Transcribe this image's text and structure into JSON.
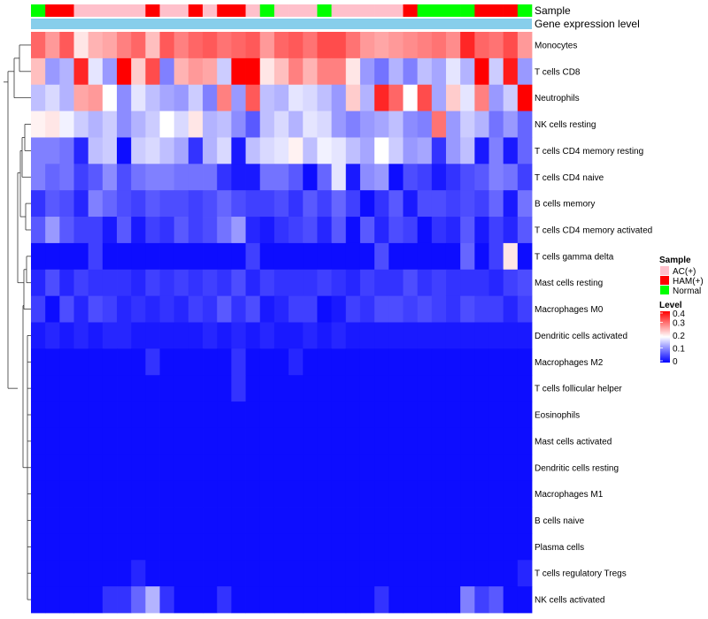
{
  "chart_data": {
    "type": "heatmap",
    "title": "",
    "annotation_titles": [
      "Sample",
      "Gene expression level"
    ],
    "rows": [
      "Monocytes",
      "T cells CD8",
      "Neutrophils",
      "NK cells resting",
      "T cells CD4 memory resting",
      "T cells CD4 naive",
      "B cells memory",
      "T cells CD4 memory activated",
      "T cells gamma delta",
      "Mast cells resting",
      "Macrophages M0",
      "Dendritic cells activated",
      "Macrophages M2",
      "T cells follicular helper",
      "Eosinophils",
      "Mast cells activated",
      "Dendritic cells resting",
      "Macrophages M1",
      "B cells naive",
      "Plasma cells",
      "T cells regulatory  Tregs",
      "NK cells activated"
    ],
    "sample_groups": [
      "Normal",
      "HAM(+)",
      "HAM(+)",
      "AC(+)",
      "AC(+)",
      "AC(+)",
      "AC(+)",
      "AC(+)",
      "HAM(+)",
      "AC(+)",
      "AC(+)",
      "HAM(+)",
      "AC(+)",
      "HAM(+)",
      "HAM(+)",
      "AC(+)",
      "Normal",
      "AC(+)",
      "AC(+)",
      "AC(+)",
      "Normal",
      "AC(+)",
      "AC(+)",
      "AC(+)",
      "AC(+)",
      "AC(+)",
      "HAM(+)",
      "Normal",
      "Normal",
      "Normal",
      "Normal",
      "HAM(+)",
      "HAM(+)",
      "HAM(+)",
      "Normal"
    ],
    "gene_expression_level_band": "light-blue",
    "values": [
      [
        0.32,
        0.28,
        0.33,
        0.22,
        0.26,
        0.27,
        0.3,
        0.32,
        0.25,
        0.33,
        0.3,
        0.32,
        0.33,
        0.31,
        0.32,
        0.33,
        0.28,
        0.32,
        0.33,
        0.31,
        0.34,
        0.34,
        0.31,
        0.28,
        0.27,
        0.28,
        0.29,
        0.3,
        0.31,
        0.29,
        0.37,
        0.32,
        0.31,
        0.34,
        0.28
      ],
      [
        0.25,
        0.12,
        0.14,
        0.37,
        0.18,
        0.12,
        0.4,
        0.24,
        0.34,
        0.1,
        0.26,
        0.28,
        0.27,
        0.16,
        0.4,
        0.4,
        0.22,
        0.25,
        0.3,
        0.26,
        0.3,
        0.3,
        0.22,
        0.12,
        0.09,
        0.14,
        0.1,
        0.15,
        0.13,
        0.18,
        0.14,
        0.4,
        0.16,
        0.38,
        0.12
      ],
      [
        0.15,
        0.17,
        0.14,
        0.27,
        0.28,
        0.2,
        0.11,
        0.18,
        0.15,
        0.13,
        0.12,
        0.16,
        0.1,
        0.3,
        0.12,
        0.33,
        0.15,
        0.14,
        0.18,
        0.17,
        0.15,
        0.12,
        0.24,
        0.14,
        0.37,
        0.32,
        0.2,
        0.34,
        0.13,
        0.24,
        0.18,
        0.3,
        0.12,
        0.16,
        0.4
      ],
      [
        0.21,
        0.22,
        0.19,
        0.16,
        0.14,
        0.16,
        0.11,
        0.14,
        0.16,
        0.2,
        0.17,
        0.22,
        0.14,
        0.15,
        0.11,
        0.07,
        0.15,
        0.17,
        0.14,
        0.18,
        0.17,
        0.12,
        0.1,
        0.12,
        0.13,
        0.15,
        0.11,
        0.1,
        0.31,
        0.12,
        0.16,
        0.14,
        0.09,
        0.12,
        0.08
      ],
      [
        0.1,
        0.1,
        0.09,
        0.03,
        0.15,
        0.16,
        0.01,
        0.16,
        0.17,
        0.15,
        0.13,
        0.04,
        0.14,
        0.17,
        0.02,
        0.15,
        0.17,
        0.18,
        0.21,
        0.15,
        0.19,
        0.18,
        0.15,
        0.13,
        0.2,
        0.16,
        0.12,
        0.13,
        0.04,
        0.12,
        0.15,
        0.02,
        0.1,
        0.02,
        0.08
      ],
      [
        0.1,
        0.08,
        0.09,
        0.05,
        0.07,
        0.11,
        0.06,
        0.09,
        0.1,
        0.1,
        0.09,
        0.09,
        0.09,
        0.04,
        0.02,
        0.02,
        0.09,
        0.09,
        0.07,
        0.01,
        0.08,
        0.18,
        0.02,
        0.11,
        0.12,
        0.01,
        0.06,
        0.05,
        0.02,
        0.04,
        0.06,
        0.07,
        0.1,
        0.09,
        0.05
      ],
      [
        0.04,
        0.07,
        0.06,
        0.03,
        0.1,
        0.08,
        0.06,
        0.05,
        0.07,
        0.06,
        0.06,
        0.05,
        0.06,
        0.08,
        0.06,
        0.05,
        0.05,
        0.06,
        0.04,
        0.07,
        0.05,
        0.08,
        0.05,
        0.01,
        0.04,
        0.07,
        0.02,
        0.06,
        0.06,
        0.05,
        0.06,
        0.05,
        0.08,
        0.02,
        0.09
      ],
      [
        0.07,
        0.12,
        0.07,
        0.05,
        0.05,
        0.02,
        0.07,
        0.02,
        0.05,
        0.04,
        0.07,
        0.05,
        0.06,
        0.09,
        0.12,
        0.03,
        0.02,
        0.04,
        0.05,
        0.06,
        0.03,
        0.07,
        0.01,
        0.07,
        0.03,
        0.06,
        0.05,
        0.01,
        0.04,
        0.03,
        0.07,
        0.02,
        0.05,
        0.03,
        0.07
      ],
      [
        0.01,
        0.01,
        0.01,
        0.01,
        0.05,
        0.01,
        0.01,
        0.01,
        0.01,
        0.01,
        0.01,
        0.01,
        0.01,
        0.01,
        0.01,
        0.05,
        0.01,
        0.01,
        0.01,
        0.01,
        0.01,
        0.01,
        0.01,
        0.01,
        0.06,
        0.01,
        0.01,
        0.01,
        0.01,
        0.01,
        0.08,
        0.01,
        0.05,
        0.22,
        0.01
      ],
      [
        0.03,
        0.06,
        0.03,
        0.05,
        0.04,
        0.04,
        0.04,
        0.03,
        0.05,
        0.04,
        0.05,
        0.04,
        0.05,
        0.04,
        0.06,
        0.03,
        0.05,
        0.04,
        0.04,
        0.04,
        0.05,
        0.04,
        0.03,
        0.05,
        0.04,
        0.04,
        0.06,
        0.04,
        0.05,
        0.04,
        0.04,
        0.04,
        0.03,
        0.05,
        0.06
      ],
      [
        0.05,
        0.01,
        0.06,
        0.03,
        0.06,
        0.05,
        0.03,
        0.04,
        0.03,
        0.04,
        0.03,
        0.05,
        0.04,
        0.07,
        0.04,
        0.06,
        0.02,
        0.03,
        0.05,
        0.05,
        0.01,
        0.02,
        0.05,
        0.04,
        0.06,
        0.06,
        0.05,
        0.06,
        0.05,
        0.04,
        0.06,
        0.05,
        0.05,
        0.03,
        0.05
      ],
      [
        0.02,
        0.03,
        0.02,
        0.03,
        0.02,
        0.03,
        0.03,
        0.02,
        0.02,
        0.02,
        0.02,
        0.02,
        0.03,
        0.02,
        0.03,
        0.02,
        0.03,
        0.02,
        0.02,
        0.03,
        0.02,
        0.03,
        0.02,
        0.02,
        0.02,
        0.02,
        0.02,
        0.02,
        0.02,
        0.02,
        0.02,
        0.02,
        0.02,
        0.02,
        0.02
      ],
      [
        0.01,
        0.01,
        0.01,
        0.01,
        0.01,
        0.01,
        0.01,
        0.01,
        0.04,
        0.01,
        0.01,
        0.01,
        0.01,
        0.01,
        0.04,
        0.01,
        0.01,
        0.01,
        0.03,
        0.01,
        0.01,
        0.01,
        0.01,
        0.01,
        0.01,
        0.01,
        0.01,
        0.01,
        0.01,
        0.01,
        0.01,
        0.01,
        0.01,
        0.01,
        0.01
      ],
      [
        0.01,
        0.01,
        0.01,
        0.01,
        0.01,
        0.01,
        0.01,
        0.01,
        0.01,
        0.01,
        0.01,
        0.01,
        0.01,
        0.01,
        0.04,
        0.01,
        0.01,
        0.01,
        0.01,
        0.01,
        0.01,
        0.01,
        0.01,
        0.01,
        0.01,
        0.01,
        0.01,
        0.01,
        0.01,
        0.01,
        0.01,
        0.01,
        0.01,
        0.01,
        0.01
      ],
      [
        0.01,
        0.01,
        0.01,
        0.01,
        0.01,
        0.01,
        0.01,
        0.01,
        0.01,
        0.01,
        0.01,
        0.01,
        0.01,
        0.01,
        0.01,
        0.01,
        0.01,
        0.01,
        0.01,
        0.01,
        0.01,
        0.01,
        0.01,
        0.01,
        0.01,
        0.01,
        0.01,
        0.01,
        0.01,
        0.01,
        0.01,
        0.01,
        0.01,
        0.01,
        0.01
      ],
      [
        0.01,
        0.01,
        0.01,
        0.01,
        0.01,
        0.01,
        0.01,
        0.01,
        0.01,
        0.01,
        0.01,
        0.01,
        0.01,
        0.01,
        0.01,
        0.01,
        0.01,
        0.01,
        0.01,
        0.01,
        0.01,
        0.01,
        0.01,
        0.01,
        0.01,
        0.01,
        0.01,
        0.01,
        0.01,
        0.01,
        0.01,
        0.01,
        0.01,
        0.01,
        0.01
      ],
      [
        0.01,
        0.01,
        0.01,
        0.01,
        0.01,
        0.01,
        0.01,
        0.01,
        0.01,
        0.01,
        0.01,
        0.01,
        0.01,
        0.01,
        0.01,
        0.01,
        0.01,
        0.01,
        0.01,
        0.01,
        0.01,
        0.01,
        0.01,
        0.01,
        0.01,
        0.01,
        0.01,
        0.01,
        0.01,
        0.01,
        0.01,
        0.01,
        0.01,
        0.01,
        0.01
      ],
      [
        0.01,
        0.01,
        0.01,
        0.01,
        0.01,
        0.01,
        0.01,
        0.01,
        0.01,
        0.01,
        0.01,
        0.01,
        0.01,
        0.01,
        0.01,
        0.01,
        0.01,
        0.01,
        0.01,
        0.01,
        0.01,
        0.01,
        0.01,
        0.01,
        0.01,
        0.01,
        0.01,
        0.01,
        0.01,
        0.01,
        0.01,
        0.01,
        0.01,
        0.01,
        0.01
      ],
      [
        0.01,
        0.01,
        0.01,
        0.01,
        0.01,
        0.01,
        0.01,
        0.01,
        0.01,
        0.01,
        0.01,
        0.01,
        0.01,
        0.01,
        0.01,
        0.01,
        0.01,
        0.01,
        0.01,
        0.01,
        0.01,
        0.01,
        0.01,
        0.01,
        0.01,
        0.01,
        0.01,
        0.01,
        0.01,
        0.01,
        0.01,
        0.01,
        0.01,
        0.01,
        0.01
      ],
      [
        0.01,
        0.01,
        0.01,
        0.01,
        0.01,
        0.01,
        0.01,
        0.01,
        0.01,
        0.01,
        0.01,
        0.01,
        0.01,
        0.01,
        0.01,
        0.01,
        0.01,
        0.01,
        0.01,
        0.01,
        0.01,
        0.01,
        0.01,
        0.01,
        0.01,
        0.01,
        0.01,
        0.01,
        0.01,
        0.01,
        0.01,
        0.01,
        0.01,
        0.01,
        0.01
      ],
      [
        0.01,
        0.01,
        0.01,
        0.01,
        0.01,
        0.01,
        0.01,
        0.03,
        0.01,
        0.01,
        0.01,
        0.01,
        0.01,
        0.01,
        0.01,
        0.01,
        0.01,
        0.01,
        0.01,
        0.01,
        0.01,
        0.01,
        0.01,
        0.01,
        0.01,
        0.01,
        0.01,
        0.01,
        0.01,
        0.01,
        0.01,
        0.01,
        0.01,
        0.01,
        0.03
      ],
      [
        0.01,
        0.01,
        0.01,
        0.01,
        0.01,
        0.04,
        0.04,
        0.08,
        0.14,
        0.04,
        0.01,
        0.01,
        0.01,
        0.04,
        0.01,
        0.01,
        0.01,
        0.01,
        0.01,
        0.01,
        0.01,
        0.01,
        0.01,
        0.01,
        0.04,
        0.01,
        0.01,
        0.01,
        0.01,
        0.01,
        0.1,
        0.05,
        0.07,
        0.01,
        0.01
      ]
    ],
    "legend_sample": {
      "title": "Sample",
      "entries": [
        {
          "label": "AC(+)",
          "color": "#ffc0cb"
        },
        {
          "label": "HAM(+)",
          "color": "#ff0000"
        },
        {
          "label": "Normal",
          "color": "#00ff00"
        }
      ]
    },
    "legend_level": {
      "title": "Level",
      "range": [
        0,
        0.4
      ],
      "ticks": [
        "0.4",
        "0.3",
        "0.2",
        "0.1",
        "0"
      ],
      "tick_values": [
        0.4,
        0.3,
        0.2,
        0.1,
        0
      ],
      "colors": {
        "low": "#0000ff",
        "mid": "#ffffff",
        "high": "#ff0000"
      }
    },
    "gene_band_color": "#87ceeb",
    "row_dendrogram": true
  }
}
